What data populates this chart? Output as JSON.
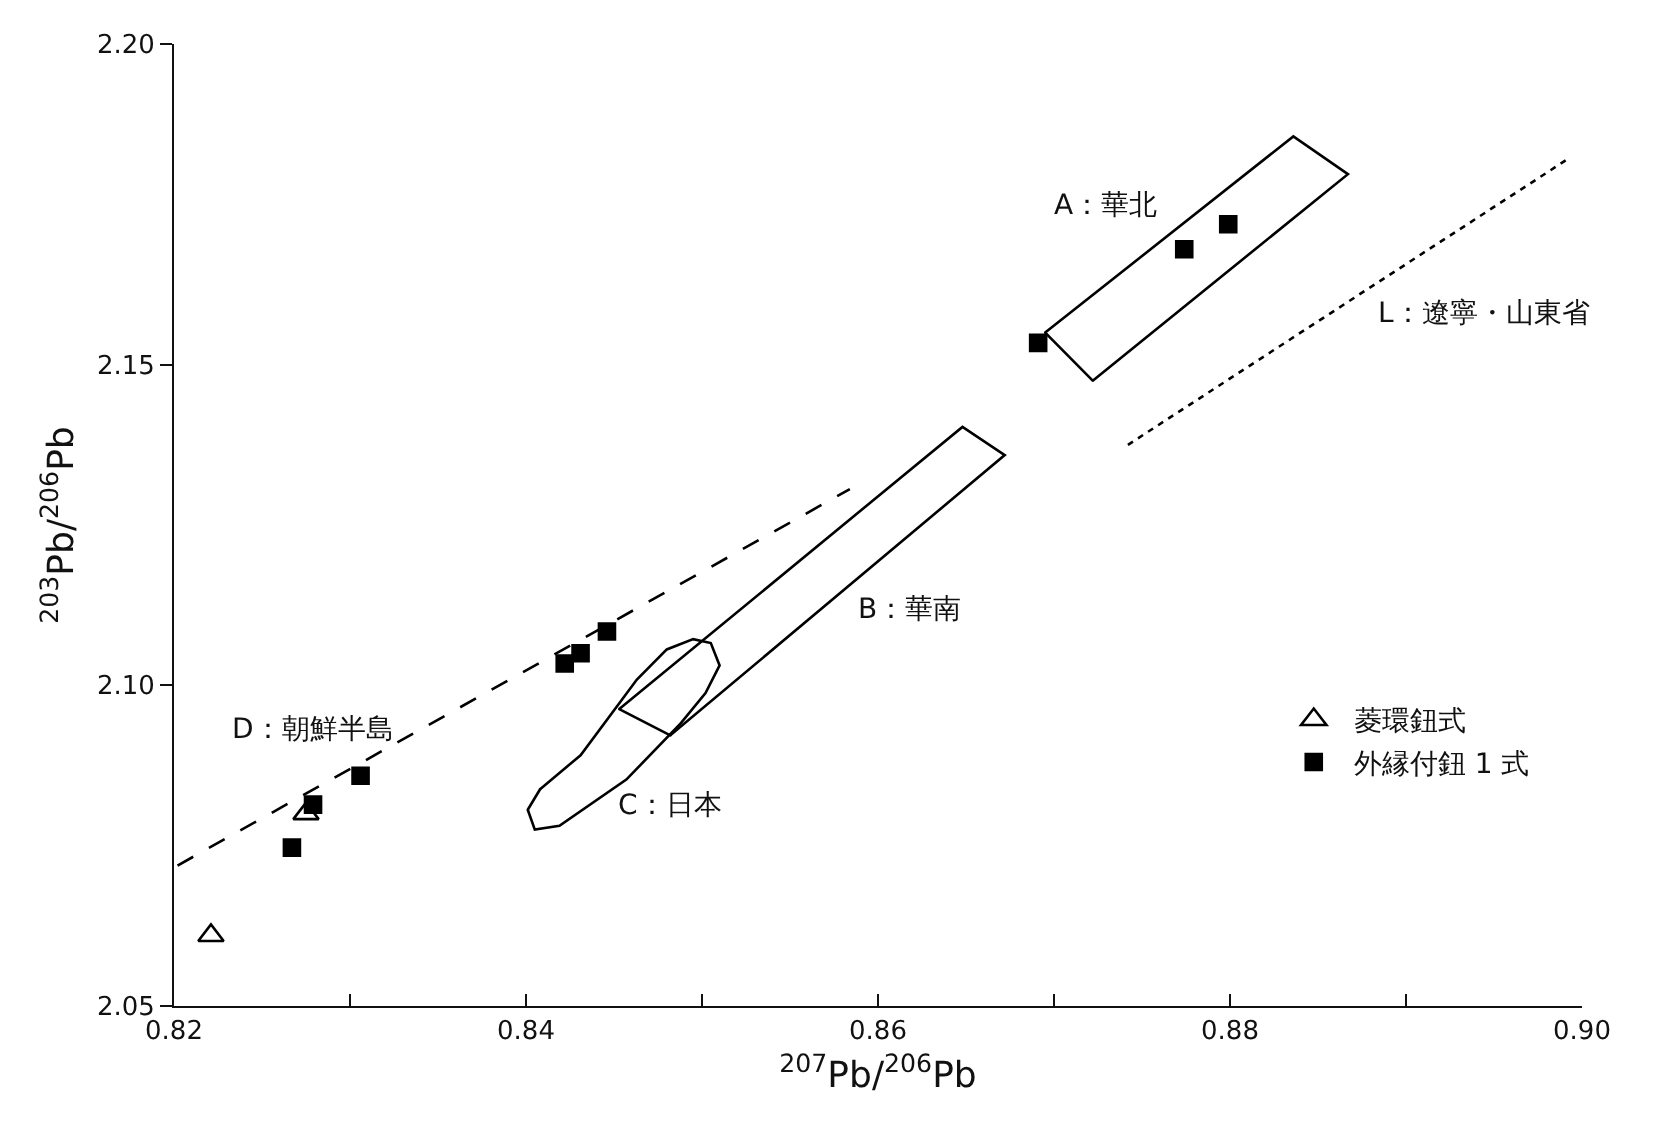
{
  "chart_data": {
    "type": "scatter",
    "xlabel": "$^{207}$Pb/$^{206}$Pb",
    "ylabel": "$^{203}$Pb/$^{206}$Pb",
    "xlim": [
      0.82,
      0.9
    ],
    "ylim": [
      2.05,
      2.2
    ],
    "xticks": [
      0.82,
      {
        "value": 0.83,
        "label": null
      },
      0.84,
      {
        "value": 0.85,
        "label": null
      },
      0.86,
      {
        "value": 0.87,
        "label": null
      },
      0.88,
      {
        "value": 0.89,
        "label": null
      },
      {
        "value": 0.9,
        "label": "0.90"
      }
    ],
    "yticks": [
      2.05,
      {
        "value": 2.1,
        "label": "2.10"
      },
      2.15,
      {
        "value": 2.2,
        "label": "2.20"
      }
    ],
    "grid": false,
    "legend": "bottom right",
    "series": [
      {
        "name": "菱環鈕式",
        "marker": "triangle",
        "color": "#000000",
        "x": [
          0.8221,
          0.8275
        ],
        "values": [
          2.061,
          2.08
        ]
      },
      {
        "name": "外縁付鈕 1 式",
        "marker": "square",
        "color": "#000000",
        "x": [
          0.8267,
          0.8279,
          0.8306,
          0.8422,
          0.8431,
          0.8446,
          0.8691,
          0.8774,
          0.8799
        ],
        "values": [
          2.0747,
          2.0814,
          2.0859,
          2.1034,
          2.105,
          2.1084,
          2.1534,
          2.168,
          2.1719
        ]
      },
      {
        "type": "line",
        "marker": "none",
        "line_style": "solid",
        "color": "#000000",
        "x": [
          0.8695,
          0.8836,
          0.8867,
          0.8722
        ],
        "values": [
          2.155,
          2.1856,
          2.1797,
          2.1475
        ]
      },
      {
        "type": "line",
        "marker": "none",
        "line_style": "solid",
        "color": "#000000",
        "x": [
          0.8453,
          0.8648,
          0.8672,
          0.8482
        ],
        "values": [
          2.0963,
          2.1403,
          2.1359,
          2.0922
        ]
      },
      {
        "type": "line",
        "marker": "none",
        "line_style": "solid",
        "color": "#000000",
        "x": [
          0.8401,
          0.8405,
          0.8419,
          0.8457,
          0.8488,
          0.8502,
          0.851,
          0.8505,
          0.8495,
          0.848,
          0.8463,
          0.8453,
          0.8431,
          0.8408
        ],
        "values": [
          2.0806,
          2.0775,
          2.0781,
          2.0853,
          2.0941,
          2.0988,
          2.1031,
          2.1066,
          2.1072,
          2.1056,
          2.1009,
          2.0972,
          2.0891,
          2.0838
        ]
      },
      {
        "type": "line",
        "marker": "none",
        "line_style": "dashed",
        "color": "#000000",
        "x": [
          0.8202,
          0.8584
        ],
        "values": [
          2.0719,
          2.1306
        ]
      },
      {
        "type": "line",
        "marker": "none",
        "line_style": "dotted",
        "color": "#000000",
        "x": [
          0.8742,
          0.8991
        ],
        "values": [
          2.1375,
          2.1819
        ]
      }
    ],
    "annotations": [
      "A：華北",
      "B：華南",
      "C：日本",
      "D：朝鮮半島",
      "L：遼寧・山東省"
    ]
  }
}
